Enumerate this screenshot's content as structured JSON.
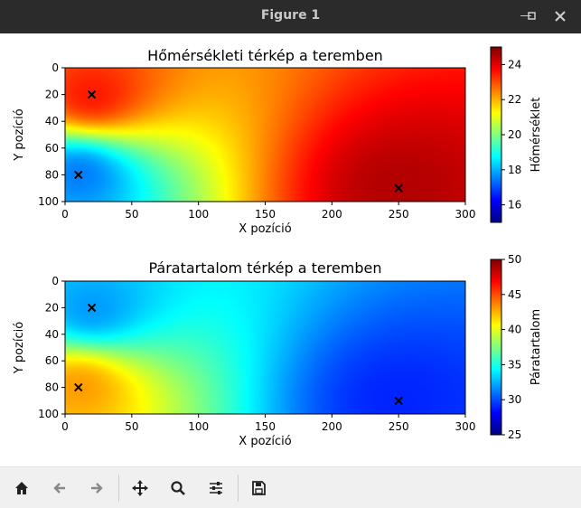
{
  "window": {
    "title": "Figure 1",
    "minimize_icon": "minimize-icon",
    "maximize_icon": "maximize-icon",
    "close_icon": "close-icon"
  },
  "toolbar": {
    "buttons": [
      {
        "name": "home-button",
        "icon": "home-icon"
      },
      {
        "name": "back-button",
        "icon": "arrow-left-icon"
      },
      {
        "name": "forward-button",
        "icon": "arrow-right-icon"
      },
      {
        "name": "pan-button",
        "icon": "move-icon"
      },
      {
        "name": "zoom-button",
        "icon": "magnifier-icon"
      },
      {
        "name": "configure-subplots-button",
        "icon": "sliders-icon"
      },
      {
        "name": "save-button",
        "icon": "floppy-disk-icon"
      }
    ]
  },
  "chart_data": [
    {
      "type": "heatmap",
      "title": "Hőmérsékleti térkép a teremben",
      "xlabel": "X pozíció",
      "ylabel": "Y pozíció",
      "xlim": [
        0,
        300
      ],
      "ylim": [
        100,
        0
      ],
      "xticks": [
        "0",
        "50",
        "100",
        "150",
        "200",
        "250",
        "300"
      ],
      "yticks": [
        "0",
        "20",
        "40",
        "60",
        "80",
        "100"
      ],
      "colormap": "jet",
      "colorbar": {
        "label": "Hőmérséklet",
        "range": [
          15,
          25
        ],
        "ticks": [
          "16",
          "18",
          "20",
          "22",
          "24"
        ]
      },
      "sources": [
        {
          "x": 20,
          "y": 20,
          "value": 23.5
        },
        {
          "x": 10,
          "y": 80,
          "value": 17.5
        },
        {
          "x": 250,
          "y": 90,
          "value": 24.5
        }
      ],
      "marker": "x"
    },
    {
      "type": "heatmap",
      "title": "Páratartalom térkép a teremben",
      "xlabel": "X pozíció",
      "ylabel": "Y pozíció",
      "xlim": [
        0,
        300
      ],
      "ylim": [
        100,
        0
      ],
      "xticks": [
        "0",
        "50",
        "100",
        "150",
        "200",
        "250",
        "300"
      ],
      "yticks": [
        "0",
        "20",
        "40",
        "60",
        "80",
        "100"
      ],
      "colormap": "jet",
      "colorbar": {
        "label": "Páratartalom",
        "range": [
          25,
          50
        ],
        "ticks": [
          "25",
          "30",
          "35",
          "40",
          "45",
          "50"
        ]
      },
      "sources": [
        {
          "x": 20,
          "y": 20,
          "value": 32
        },
        {
          "x": 10,
          "y": 80,
          "value": 43
        },
        {
          "x": 250,
          "y": 90,
          "value": 29
        }
      ],
      "marker": "x"
    }
  ]
}
